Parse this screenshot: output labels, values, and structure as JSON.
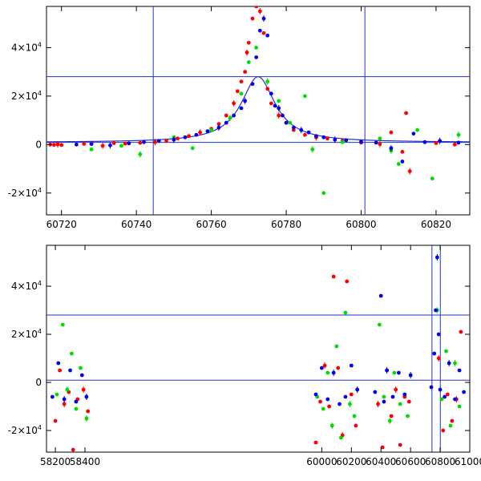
{
  "chart_data": [
    {
      "type": "scatter",
      "panel": "top",
      "xlim": [
        60716,
        60829
      ],
      "ylim": [
        -29000,
        57000
      ],
      "x_ticks": [
        60720,
        60740,
        60760,
        60780,
        60800,
        60820
      ],
      "x_tick_labels": [
        "60720",
        "60740",
        "60760",
        "60780",
        "60800",
        "60820"
      ],
      "y_ticks": [
        -20000,
        0,
        20000,
        40000
      ],
      "y_tick_labels": [
        {
          "mantissa": "-2×10",
          "exp": "4"
        },
        {
          "mantissa": "0",
          "exp": ""
        },
        {
          "mantissa": "2×10",
          "exp": "4"
        },
        {
          "mantissa": "4×10",
          "exp": "4"
        }
      ],
      "vlines": [
        60744.5,
        60801
      ],
      "hlines": [
        28000,
        900
      ],
      "model": {
        "t0": 60772.5,
        "peak": 28000,
        "base": 900,
        "width": 5.5
      },
      "series": [
        {
          "color": "#ff0000",
          "x": [
            60717,
            60718,
            60719,
            60720,
            60726,
            60728,
            60731,
            60734,
            60737,
            60741,
            60745,
            60748,
            60751,
            60754,
            60757,
            60760,
            60762,
            60764,
            60766,
            60767,
            60768,
            60769,
            60769.5,
            60770,
            60771,
            60772,
            60773,
            60774,
            60775,
            60776,
            60778,
            60780,
            60782,
            60785,
            60788,
            60791,
            60795,
            60800,
            60805,
            60808,
            60811,
            60812,
            60813,
            60820,
            60825
          ],
          "y": [
            0,
            -100,
            100,
            -200,
            300,
            400,
            -500,
            600,
            400,
            700,
            1000,
            1500,
            2500,
            3500,
            5000,
            6500,
            8500,
            12000,
            17000,
            22000,
            26000,
            30000,
            38000,
            42000,
            52000,
            57000,
            55000,
            46000,
            23000,
            17000,
            12000,
            9000,
            6000,
            4000,
            3000,
            2500,
            1500,
            800,
            200,
            5000,
            -3000,
            13000,
            -11000,
            600,
            0
          ]
        },
        {
          "color": "#00dd00",
          "x": [
            60728,
            60736,
            60741,
            60750,
            60755,
            60760,
            60765,
            60768,
            60770,
            60772,
            60775,
            60778,
            60781,
            60785,
            60787,
            60790,
            60795,
            60805,
            60808,
            60810,
            60815,
            60819,
            60826
          ],
          "y": [
            -2000,
            -500,
            -4000,
            3000,
            -1500,
            6000,
            11000,
            21000,
            34000,
            40000,
            26000,
            18000,
            9000,
            20000,
            -2000,
            -20000,
            1000,
            2500,
            -2500,
            -8000,
            6000,
            -14000,
            4000
          ]
        },
        {
          "color": "#0000ee",
          "x": [
            60724,
            60728,
            60733,
            60738,
            60742,
            60746,
            60750,
            60753,
            60756,
            60759,
            60762,
            60764,
            60766,
            60768,
            60769,
            60771,
            60772,
            60773,
            60774,
            60775,
            60776,
            60777,
            60778,
            60779,
            60780,
            60782,
            60784,
            60786,
            60788,
            60790,
            60793,
            60796,
            60800,
            60804,
            60808,
            60811,
            60814,
            60817,
            60821,
            60826
          ],
          "y": [
            0,
            200,
            -300,
            500,
            1000,
            1500,
            2000,
            3000,
            4000,
            5500,
            7000,
            9000,
            12000,
            15000,
            18000,
            25000,
            36000,
            47000,
            52000,
            45000,
            21000,
            16000,
            15000,
            12000,
            9000,
            7000,
            6000,
            5000,
            3500,
            3000,
            2000,
            1800,
            1200,
            800,
            -1500,
            -7000,
            4500,
            1000,
            1500,
            800
          ]
        }
      ]
    },
    {
      "type": "scatter",
      "panel": "bottom",
      "xlim": [
        58140,
        61000
      ],
      "ylim": [
        -29000,
        57000
      ],
      "x_ticks": [
        58200,
        58400,
        60000,
        60200,
        60400,
        60600,
        60800,
        61000
      ],
      "x_tick_labels": [
        "58200",
        "58400",
        "60000",
        "60200",
        "60400",
        "60600",
        "60800",
        "61000"
      ],
      "y_ticks": [
        -20000,
        0,
        20000,
        40000
      ],
      "y_tick_labels": [
        {
          "mantissa": "-2×10",
          "exp": "4"
        },
        {
          "mantissa": "0",
          "exp": ""
        },
        {
          "mantissa": "2×10",
          "exp": "4"
        },
        {
          "mantissa": "4×10",
          "exp": "4"
        }
      ],
      "vlines": [
        60744.5,
        60801
      ],
      "hlines": [
        28000,
        900
      ],
      "series": [
        {
          "color": "#ff0000",
          "x": [
            58200,
            58230,
            58260,
            58290,
            58320,
            58350,
            58390,
            58420,
            59960,
            59990,
            60020,
            60050,
            60080,
            60110,
            60140,
            60170,
            60200,
            60230,
            60380,
            60410,
            60440,
            60470,
            60500,
            60530,
            60560,
            60590,
            60790,
            60820,
            60850,
            60880,
            60910,
            60940
          ],
          "y": [
            -16000,
            5000,
            -9000,
            -4000,
            -28000,
            -7000,
            -3000,
            -12000,
            -25000,
            -8000,
            7000,
            -10000,
            44000,
            6000,
            -22000,
            42000,
            -5000,
            -18000,
            -9000,
            -27000,
            5000,
            -14000,
            -3000,
            -26000,
            -6000,
            -8000,
            10000,
            -20000,
            -5000,
            -16000,
            -7000,
            21000
          ]
        },
        {
          "color": "#00dd00",
          "x": [
            58210,
            58250,
            58280,
            58310,
            58340,
            58370,
            58410,
            59970,
            60010,
            60040,
            60070,
            60100,
            60130,
            60160,
            60190,
            60220,
            60390,
            60420,
            60460,
            60490,
            60530,
            60580,
            60780,
            60810,
            60840,
            60870,
            60900,
            60930
          ],
          "y": [
            -5000,
            24000,
            -3000,
            12000,
            -11000,
            6000,
            -15000,
            -6000,
            -11000,
            4000,
            -18000,
            15000,
            -23000,
            29000,
            -9000,
            -14000,
            24000,
            -6000,
            -16000,
            4000,
            -9000,
            -14000,
            30000,
            -7000,
            13000,
            -18000,
            8000,
            -10000
          ]
        },
        {
          "color": "#0000ee",
          "x": [
            58180,
            58220,
            58260,
            58300,
            58340,
            58380,
            58410,
            59960,
            60000,
            60040,
            60080,
            60120,
            60160,
            60200,
            60240,
            60360,
            60400,
            60420,
            60440,
            60480,
            60520,
            60560,
            60600,
            60740,
            60760,
            60770,
            60780,
            60790,
            60800,
            60830,
            60860,
            60900,
            60930,
            60960
          ],
          "y": [
            -6000,
            8000,
            -7000,
            5000,
            -8000,
            3000,
            -6000,
            -5000,
            6000,
            -7000,
            4000,
            -9000,
            -6000,
            7000,
            -3000,
            -4000,
            36000,
            -8000,
            5000,
            -6000,
            4000,
            -5000,
            3000,
            -2000,
            12000,
            30000,
            52000,
            20000,
            -3000,
            -6000,
            8000,
            -7000,
            5000,
            -4000
          ]
        }
      ]
    }
  ]
}
